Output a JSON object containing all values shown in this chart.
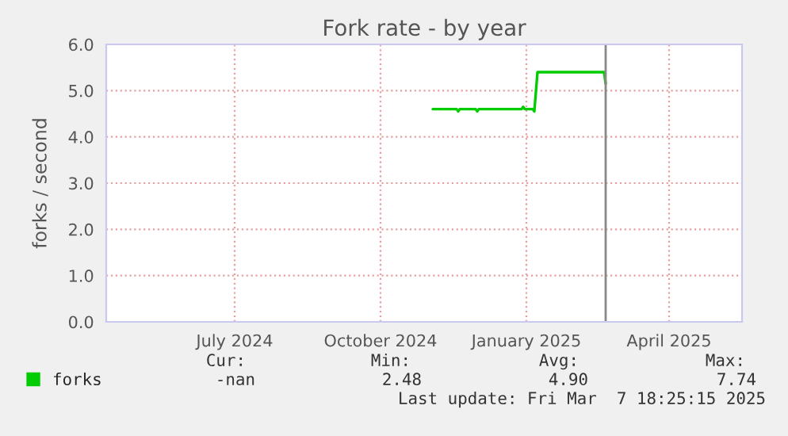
{
  "chart_data": {
    "type": "line",
    "title": "Fork rate - by year",
    "ylabel": "forks / second",
    "x": [
      "2024-11-03",
      "2024-11-18",
      "2024-11-19",
      "2024-11-20",
      "2024-11-30",
      "2024-12-01",
      "2024-12-02",
      "2024-12-29",
      "2024-12-30",
      "2024-12-31",
      "2025-01-05",
      "2025-01-06",
      "2025-01-08",
      "2025-02-19",
      "2025-02-20"
    ],
    "series": [
      {
        "name": "forks",
        "color": "#00cc00",
        "values": [
          4.6,
          4.6,
          4.55,
          4.6,
          4.6,
          4.55,
          4.6,
          4.6,
          4.65,
          4.6,
          4.6,
          4.55,
          5.4,
          5.4,
          5.15
        ]
      }
    ],
    "xlim": [
      "2024-04-11",
      "2025-05-17"
    ],
    "xticks": [
      {
        "value": "2024-07-01",
        "label": "July 2024"
      },
      {
        "value": "2024-10-01",
        "label": "October 2024"
      },
      {
        "value": "2025-01-01",
        "label": "January 2025"
      },
      {
        "value": "2025-04-01",
        "label": "April 2025"
      }
    ],
    "ylim": [
      0,
      6
    ],
    "yticks": [
      {
        "value": 0,
        "label": "0.0"
      },
      {
        "value": 1,
        "label": "1.0"
      },
      {
        "value": 2,
        "label": "2.0"
      },
      {
        "value": 3,
        "label": "3.0"
      },
      {
        "value": 4,
        "label": "4.0"
      },
      {
        "value": 5,
        "label": "5.0"
      },
      {
        "value": 6,
        "label": "6.0"
      }
    ],
    "ref_lines": [
      {
        "axis": "x",
        "value": "2025-02-20",
        "color": "#888888"
      }
    ],
    "grid": true,
    "legend": "bottom left",
    "marker": "none",
    "line_style": "solid",
    "annotations": [
      "Cur:",
      "Min:",
      "Avg:",
      "Max:",
      "-nan",
      "2.48",
      "4.90",
      "7.74",
      "Last update: Fri Mar  7 18:25:15 2025"
    ]
  }
}
